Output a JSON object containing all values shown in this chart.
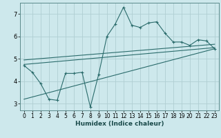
{
  "xlabel": "Humidex (Indice chaleur)",
  "bg_color": "#cde8ec",
  "grid_color": "#b0ced2",
  "line_color": "#2a6b6b",
  "xlim": [
    -0.5,
    23.5
  ],
  "ylim": [
    2.7,
    7.5
  ],
  "xticks": [
    0,
    1,
    2,
    3,
    4,
    5,
    6,
    7,
    8,
    9,
    10,
    11,
    12,
    13,
    14,
    15,
    16,
    17,
    18,
    19,
    20,
    21,
    22,
    23
  ],
  "yticks": [
    3,
    4,
    5,
    6,
    7
  ],
  "main_x": [
    0,
    1,
    2,
    3,
    4,
    5,
    6,
    7,
    8,
    9,
    10,
    11,
    12,
    13,
    14,
    15,
    16,
    17,
    18,
    19,
    20,
    21,
    22,
    23
  ],
  "main_y": [
    4.7,
    4.4,
    3.9,
    3.2,
    3.15,
    4.35,
    4.35,
    4.4,
    2.85,
    4.3,
    6.0,
    6.55,
    7.3,
    6.5,
    6.4,
    6.6,
    6.65,
    6.15,
    5.75,
    5.75,
    5.6,
    5.85,
    5.8,
    5.45
  ],
  "line1_x": [
    0,
    23
  ],
  "line1_y": [
    4.75,
    5.5
  ],
  "line2_x": [
    0,
    23
  ],
  "line2_y": [
    4.95,
    5.65
  ],
  "line3_x": [
    0,
    23
  ],
  "line3_y": [
    3.2,
    5.45
  ],
  "tick_fontsize": 5.5,
  "label_fontsize": 6.5
}
